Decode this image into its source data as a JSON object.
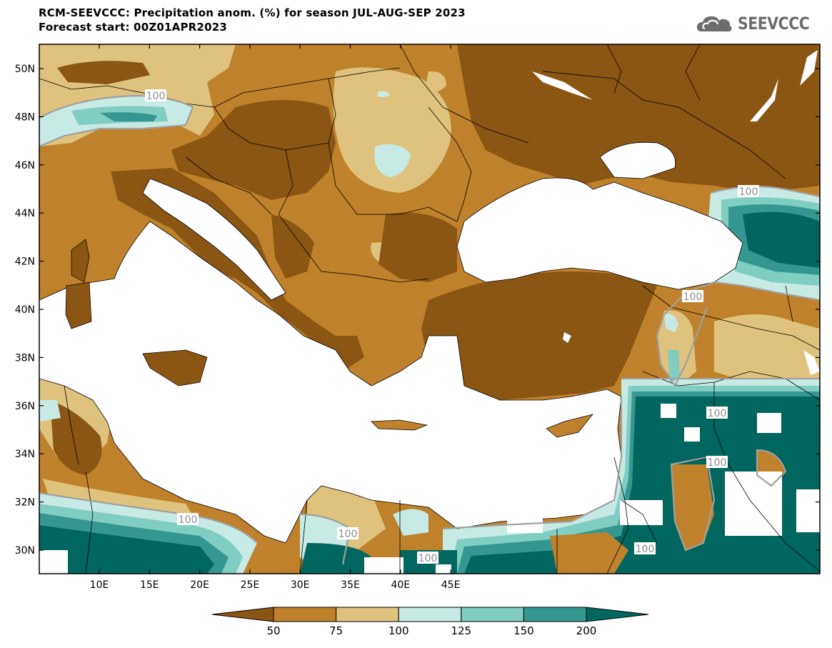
{
  "title": {
    "line1": "RCM-SEEVCCC: Precipitation anom. (%) for season JUL-AUG-SEP 2023",
    "line2": "Forecast start: 00Z01APR2023"
  },
  "logo": {
    "text": "SEEVCCC",
    "icon": "cloud-icon"
  },
  "map": {
    "lat_labels": [
      "50N",
      "48N",
      "46N",
      "44N",
      "42N",
      "40N",
      "38N",
      "36N",
      "34N",
      "32N",
      "30N"
    ],
    "lon_labels": [
      "10E",
      "15E",
      "20E",
      "25E",
      "30E",
      "35E",
      "40E",
      "45E"
    ],
    "contour_label": "100",
    "colors": {
      "lt50": "#8b5513",
      "c50_75": "#bf812c",
      "c75_100": "#dfc27d",
      "c100_125": "#c7eae5",
      "c125_150": "#80cdc1",
      "c150_200": "#35978f",
      "gt200": "#01665e",
      "sea": "#ffffff"
    }
  },
  "colorbar": {
    "labels": [
      "50",
      "75",
      "100",
      "125",
      "150",
      "200"
    ],
    "colors": [
      "#8b5513",
      "#bf812c",
      "#dfc27d",
      "#c7eae5",
      "#80cdc1",
      "#35978f",
      "#01665e"
    ]
  }
}
